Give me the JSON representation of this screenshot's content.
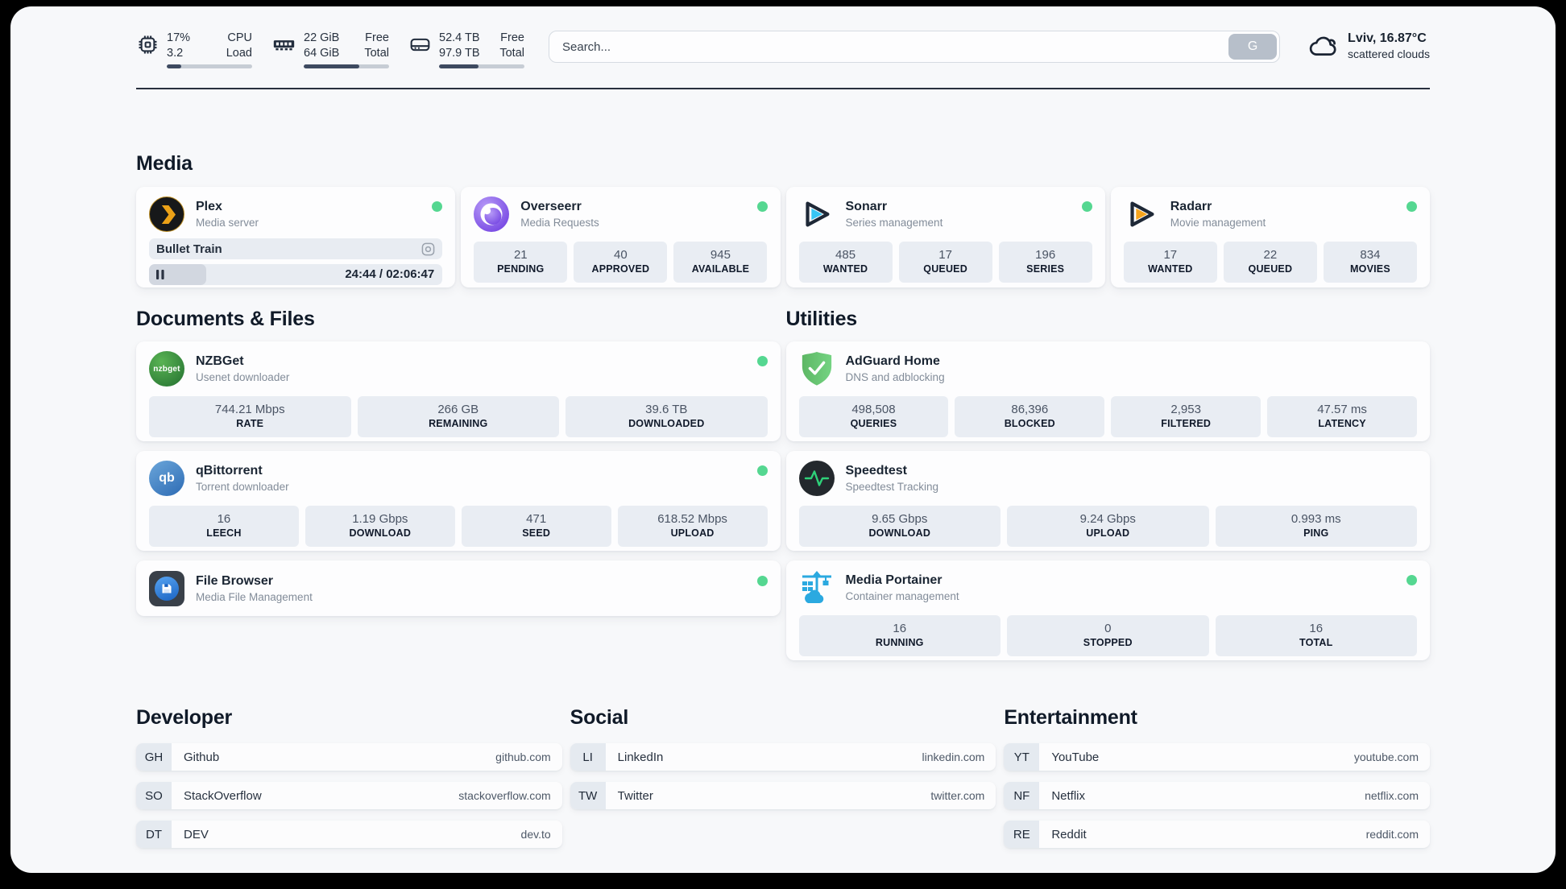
{
  "header": {
    "cpu": {
      "v1": "17%",
      "v2": "3.2",
      "l1": "CPU",
      "l2": "Load",
      "progress": 17
    },
    "ram": {
      "v1": "22 GiB",
      "v2": "64 GiB",
      "l1": "Free",
      "l2": "Total",
      "progress": 65
    },
    "disk": {
      "v1": "52.4 TB",
      "v2": "97.9 TB",
      "l1": "Free",
      "l2": "Total",
      "progress": 46
    },
    "search": {
      "placeholder": "Search...",
      "button": "G"
    },
    "weather": {
      "title": "Lviv, 16.87°C",
      "subtitle": "scattered clouds"
    }
  },
  "media": {
    "title": "Media",
    "apps": [
      {
        "name": "Plex",
        "subtitle": "Media server",
        "online": true,
        "now_playing": {
          "title": "Bullet Train",
          "time": "24:44 / 02:06:47",
          "progress_pct": 19.5
        }
      },
      {
        "name": "Overseerr",
        "subtitle": "Media Requests",
        "online": true,
        "stats": [
          {
            "value": "21",
            "label": "PENDING"
          },
          {
            "value": "40",
            "label": "APPROVED"
          },
          {
            "value": "945",
            "label": "AVAILABLE"
          }
        ]
      },
      {
        "name": "Sonarr",
        "subtitle": "Series management",
        "online": true,
        "stats": [
          {
            "value": "485",
            "label": "WANTED"
          },
          {
            "value": "17",
            "label": "QUEUED"
          },
          {
            "value": "196",
            "label": "SERIES"
          }
        ]
      },
      {
        "name": "Radarr",
        "subtitle": "Movie management",
        "online": true,
        "stats": [
          {
            "value": "17",
            "label": "WANTED"
          },
          {
            "value": "22",
            "label": "QUEUED"
          },
          {
            "value": "834",
            "label": "MOVIES"
          }
        ]
      }
    ]
  },
  "documents": {
    "title": "Documents & Files",
    "apps": [
      {
        "name": "NZBGet",
        "subtitle": "Usenet downloader",
        "online": true,
        "icon_text": "nzbget",
        "stats": [
          {
            "value": "744.21 Mbps",
            "label": "RATE"
          },
          {
            "value": "266 GB",
            "label": "REMAINING"
          },
          {
            "value": "39.6 TB",
            "label": "DOWNLOADED"
          }
        ]
      },
      {
        "name": "qBittorrent",
        "subtitle": "Torrent downloader",
        "online": true,
        "icon_text": "qb",
        "stats": [
          {
            "value": "16",
            "label": "LEECH"
          },
          {
            "value": "1.19 Gbps",
            "label": "DOWNLOAD"
          },
          {
            "value": "471",
            "label": "SEED"
          },
          {
            "value": "618.52 Mbps",
            "label": "UPLOAD"
          }
        ]
      },
      {
        "name": "File Browser",
        "subtitle": "Media File Management",
        "online": true
      }
    ]
  },
  "utilities": {
    "title": "Utilities",
    "apps": [
      {
        "name": "AdGuard Home",
        "subtitle": "DNS and adblocking",
        "online": false,
        "stats": [
          {
            "value": "498,508",
            "label": "QUERIES"
          },
          {
            "value": "86,396",
            "label": "BLOCKED"
          },
          {
            "value": "2,953",
            "label": "FILTERED"
          },
          {
            "value": "47.57 ms",
            "label": "LATENCY"
          }
        ]
      },
      {
        "name": "Speedtest",
        "subtitle": "Speedtest Tracking",
        "online": false,
        "stats": [
          {
            "value": "9.65 Gbps",
            "label": "DOWNLOAD"
          },
          {
            "value": "9.24 Gbps",
            "label": "UPLOAD"
          },
          {
            "value": "0.993 ms",
            "label": "PING"
          }
        ]
      },
      {
        "name": "Media Portainer",
        "subtitle": "Container management",
        "online": true,
        "stats": [
          {
            "value": "16",
            "label": "RUNNING"
          },
          {
            "value": "0",
            "label": "STOPPED"
          },
          {
            "value": "16",
            "label": "TOTAL"
          }
        ]
      }
    ]
  },
  "developer": {
    "title": "Developer",
    "links": [
      {
        "abbr": "GH",
        "name": "Github",
        "url": "github.com"
      },
      {
        "abbr": "SO",
        "name": "StackOverflow",
        "url": "stackoverflow.com"
      },
      {
        "abbr": "DT",
        "name": "DEV",
        "url": "dev.to"
      }
    ]
  },
  "social": {
    "title": "Social",
    "links": [
      {
        "abbr": "LI",
        "name": "LinkedIn",
        "url": "linkedin.com"
      },
      {
        "abbr": "TW",
        "name": "Twitter",
        "url": "twitter.com"
      }
    ]
  },
  "entertainment": {
    "title": "Entertainment",
    "links": [
      {
        "abbr": "YT",
        "name": "YouTube",
        "url": "youtube.com"
      },
      {
        "abbr": "NF",
        "name": "Netflix",
        "url": "netflix.com"
      },
      {
        "abbr": "RE",
        "name": "Reddit",
        "url": "reddit.com"
      }
    ]
  },
  "colors": {
    "status_green": "#55d791",
    "plex_amber": "#eba117",
    "sonarr_blue": "#38c6f4",
    "radarr_orange": "#f6a41c",
    "nzbget_green": "#3a9a44",
    "qbittorrent_blue": "#2d6bb4",
    "adguard_green": "#68c273",
    "speedtest_pulse": "#2ed179",
    "portainer_blue": "#2ba9e0",
    "overseerr_purple": "#7c3aed"
  }
}
